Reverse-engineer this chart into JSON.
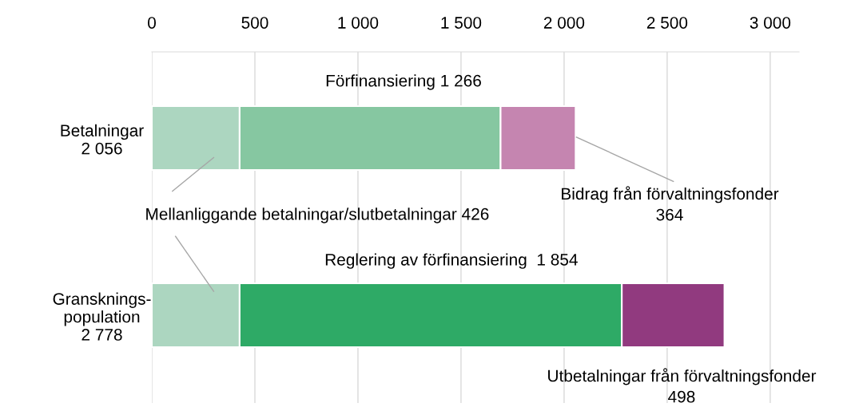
{
  "chart_data": {
    "type": "bar",
    "orientation": "horizontal",
    "stacked": true,
    "categories": [
      "Betalningar\n2 056",
      "Gransknings-\npopulation\n2 778"
    ],
    "series": [
      {
        "color": "#acd6c0",
        "values": [
          426,
          426
        ]
      },
      {
        "colors": [
          "#86c7a1",
          "#2eaa66"
        ],
        "values": [
          1266,
          1854
        ]
      },
      {
        "colors": [
          "#c585b0",
          "#913a7f"
        ],
        "values": [
          364,
          498
        ]
      }
    ],
    "xlim": [
      0,
      3140
    ],
    "xticks": [
      0,
      {
        "value": 500,
        "label": "500"
      },
      {
        "value": 1000,
        "label": "1 000"
      },
      {
        "value": 1500,
        "label": "1 500"
      },
      {
        "value": 2000,
        "label": "2 000"
      },
      {
        "value": 2500,
        "label": "2 500"
      },
      {
        "value": 3000,
        "label": "3 000"
      }
    ],
    "grid": "x",
    "legend": false,
    "annotations": [
      "Förfinansiering 1 266",
      "Mellanliggande betalningar/slutbetalningar 426",
      {
        "text": "Bidrag från förvaltningsfonder\n364",
        "x": 2060,
        "y": "Betalningar\n2 056"
      },
      "Reglering av förfinansiering  1 854",
      "Utbetalningar från förvaltningsfonder\n498"
    ]
  }
}
